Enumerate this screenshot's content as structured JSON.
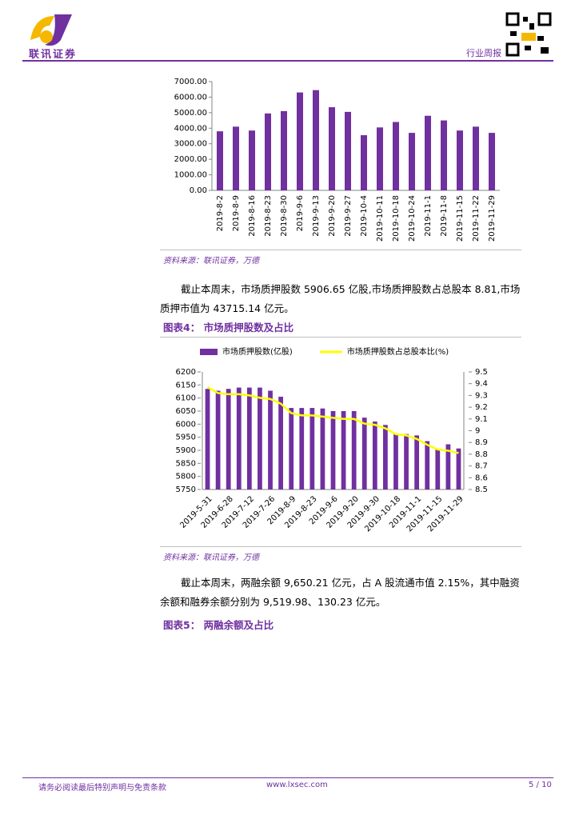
{
  "header": {
    "brand": "联讯证券",
    "report_type": "行业周报"
  },
  "paragraphs": [
    "截止本周末，市场质押股数 5906.65 亿股,市场质押股数占总股本 8.81,市场质押市值为 43715.14 亿元。",
    "截止本周末，两融余额 9,650.21 亿元，占 A 股流通市值 2.15%，其中融资余额和融券余额分别为 9,519.98、130.23 亿元。"
  ],
  "sources": [
    "资料来源：联讯证券，万德",
    "资料来源：联讯证券，万德"
  ],
  "figures": [
    {
      "label": "图表4：",
      "title": "市场质押股数及占比"
    },
    {
      "label": "图表5：",
      "title": "两融余额及占比"
    }
  ],
  "footer": {
    "disclaimer": "请务必阅读最后特别声明与免责条款",
    "website": "www.lxsec.com",
    "page": "5 / 10"
  },
  "chart_data": [
    {
      "type": "bar",
      "grid": false,
      "categories": [
        "2019-8-2",
        "2019-8-9",
        "2019-8-16",
        "2019-8-23",
        "2019-8-30",
        "2019-9-6",
        "2019-9-13",
        "2019-9-20",
        "2019-9-27",
        "2019-10-4",
        "2019-10-11",
        "2019-10-18",
        "2019-10-24",
        "2019-11-1",
        "2019-11-8",
        "2019-11-15",
        "2019-11-22",
        "2019-11-29"
      ],
      "values": [
        3800,
        4100,
        3850,
        4950,
        5100,
        6300,
        6450,
        5350,
        5050,
        3550,
        4050,
        4400,
        3700,
        4800,
        4500,
        3850,
        4100,
        3700
      ],
      "color": "#7030a0",
      "ylim": [
        0,
        7000
      ],
      "yticks": [
        {
          "value": 0,
          "label": "0.00"
        },
        {
          "value": 1000,
          "label": "1000.00"
        },
        {
          "value": 2000,
          "label": "2000.00"
        },
        {
          "value": 3000,
          "label": "3000.00"
        },
        {
          "value": 4000,
          "label": "4000.00"
        },
        {
          "value": 5000,
          "label": "5000.00"
        },
        {
          "value": 6000,
          "label": "6000.00"
        },
        {
          "value": 7000,
          "label": "7000.00"
        }
      ]
    },
    {
      "type": "bar-line",
      "grid": false,
      "legend": "top",
      "categories": [
        "2019-5-31",
        null,
        "2019-6-28",
        null,
        "2019-7-12",
        null,
        "2019-7-26",
        null,
        "2019-8-9",
        null,
        "2019-8-23",
        null,
        "2019-9-6",
        null,
        "2019-9-20",
        null,
        "2019-9-30",
        null,
        "2019-10-18",
        null,
        "2019-11-1",
        null,
        "2019-11-15",
        null,
        "2019-11-29"
      ],
      "series": [
        {
          "name": "市场质押股数(亿股)",
          "color": "#7030a0",
          "type": "bar",
          "values": [
            6135,
            6128,
            6135,
            6140,
            6140,
            6140,
            6128,
            6105,
            6062,
            6062,
            6062,
            6060,
            6050,
            6050,
            6050,
            6025,
            6010,
            5997,
            5962,
            5962,
            5957,
            5935,
            5905,
            5923,
            5907
          ]
        },
        {
          "name": "市场质押股数占总股本比(%)",
          "color": "#ffff00",
          "type": "line",
          "axis": "y2",
          "values": [
            9.37,
            9.32,
            9.31,
            9.31,
            9.3,
            9.28,
            9.27,
            9.23,
            9.15,
            9.13,
            9.13,
            9.12,
            9.11,
            9.1,
            9.1,
            9.06,
            9.05,
            9.02,
            8.97,
            8.96,
            8.93,
            8.88,
            8.84,
            8.83,
            8.81
          ]
        }
      ],
      "ylim": [
        5750,
        6200
      ],
      "yticks": [
        5750,
        5800,
        5850,
        5900,
        5950,
        6000,
        6050,
        6100,
        6150,
        6200
      ],
      "y2lim": [
        8.5,
        9.5
      ],
      "y2ticks": [
        8.5,
        8.6,
        8.7,
        8.8,
        8.9,
        9,
        9.1,
        9.2,
        9.3,
        9.4,
        9.5
      ]
    }
  ]
}
